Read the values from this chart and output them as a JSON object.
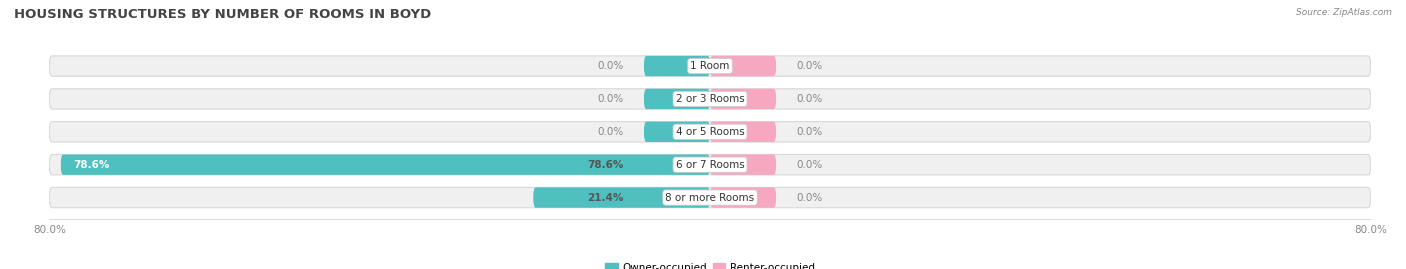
{
  "title": "HOUSING STRUCTURES BY NUMBER OF ROOMS IN BOYD",
  "source": "Source: ZipAtlas.com",
  "categories": [
    "1 Room",
    "2 or 3 Rooms",
    "4 or 5 Rooms",
    "6 or 7 Rooms",
    "8 or more Rooms"
  ],
  "owner_values": [
    0.0,
    0.0,
    0.0,
    78.6,
    21.4
  ],
  "renter_values": [
    0.0,
    0.0,
    0.0,
    0.0,
    0.0
  ],
  "owner_color": "#50BFBF",
  "renter_color": "#F5A8C0",
  "bar_bg_color": "#F0F0F0",
  "bar_border_color": "#D8D8D8",
  "xlim_left": -80.0,
  "xlim_right": 80.0,
  "x_left_label": "80.0%",
  "x_right_label": "80.0%",
  "title_fontsize": 9.5,
  "label_fontsize": 7.5,
  "category_fontsize": 7.5,
  "bg_color": "#FFFFFF",
  "min_bar_width": 8.0,
  "bar_height": 0.62,
  "legend_owner": "Owner-occupied",
  "legend_renter": "Renter-occupied"
}
